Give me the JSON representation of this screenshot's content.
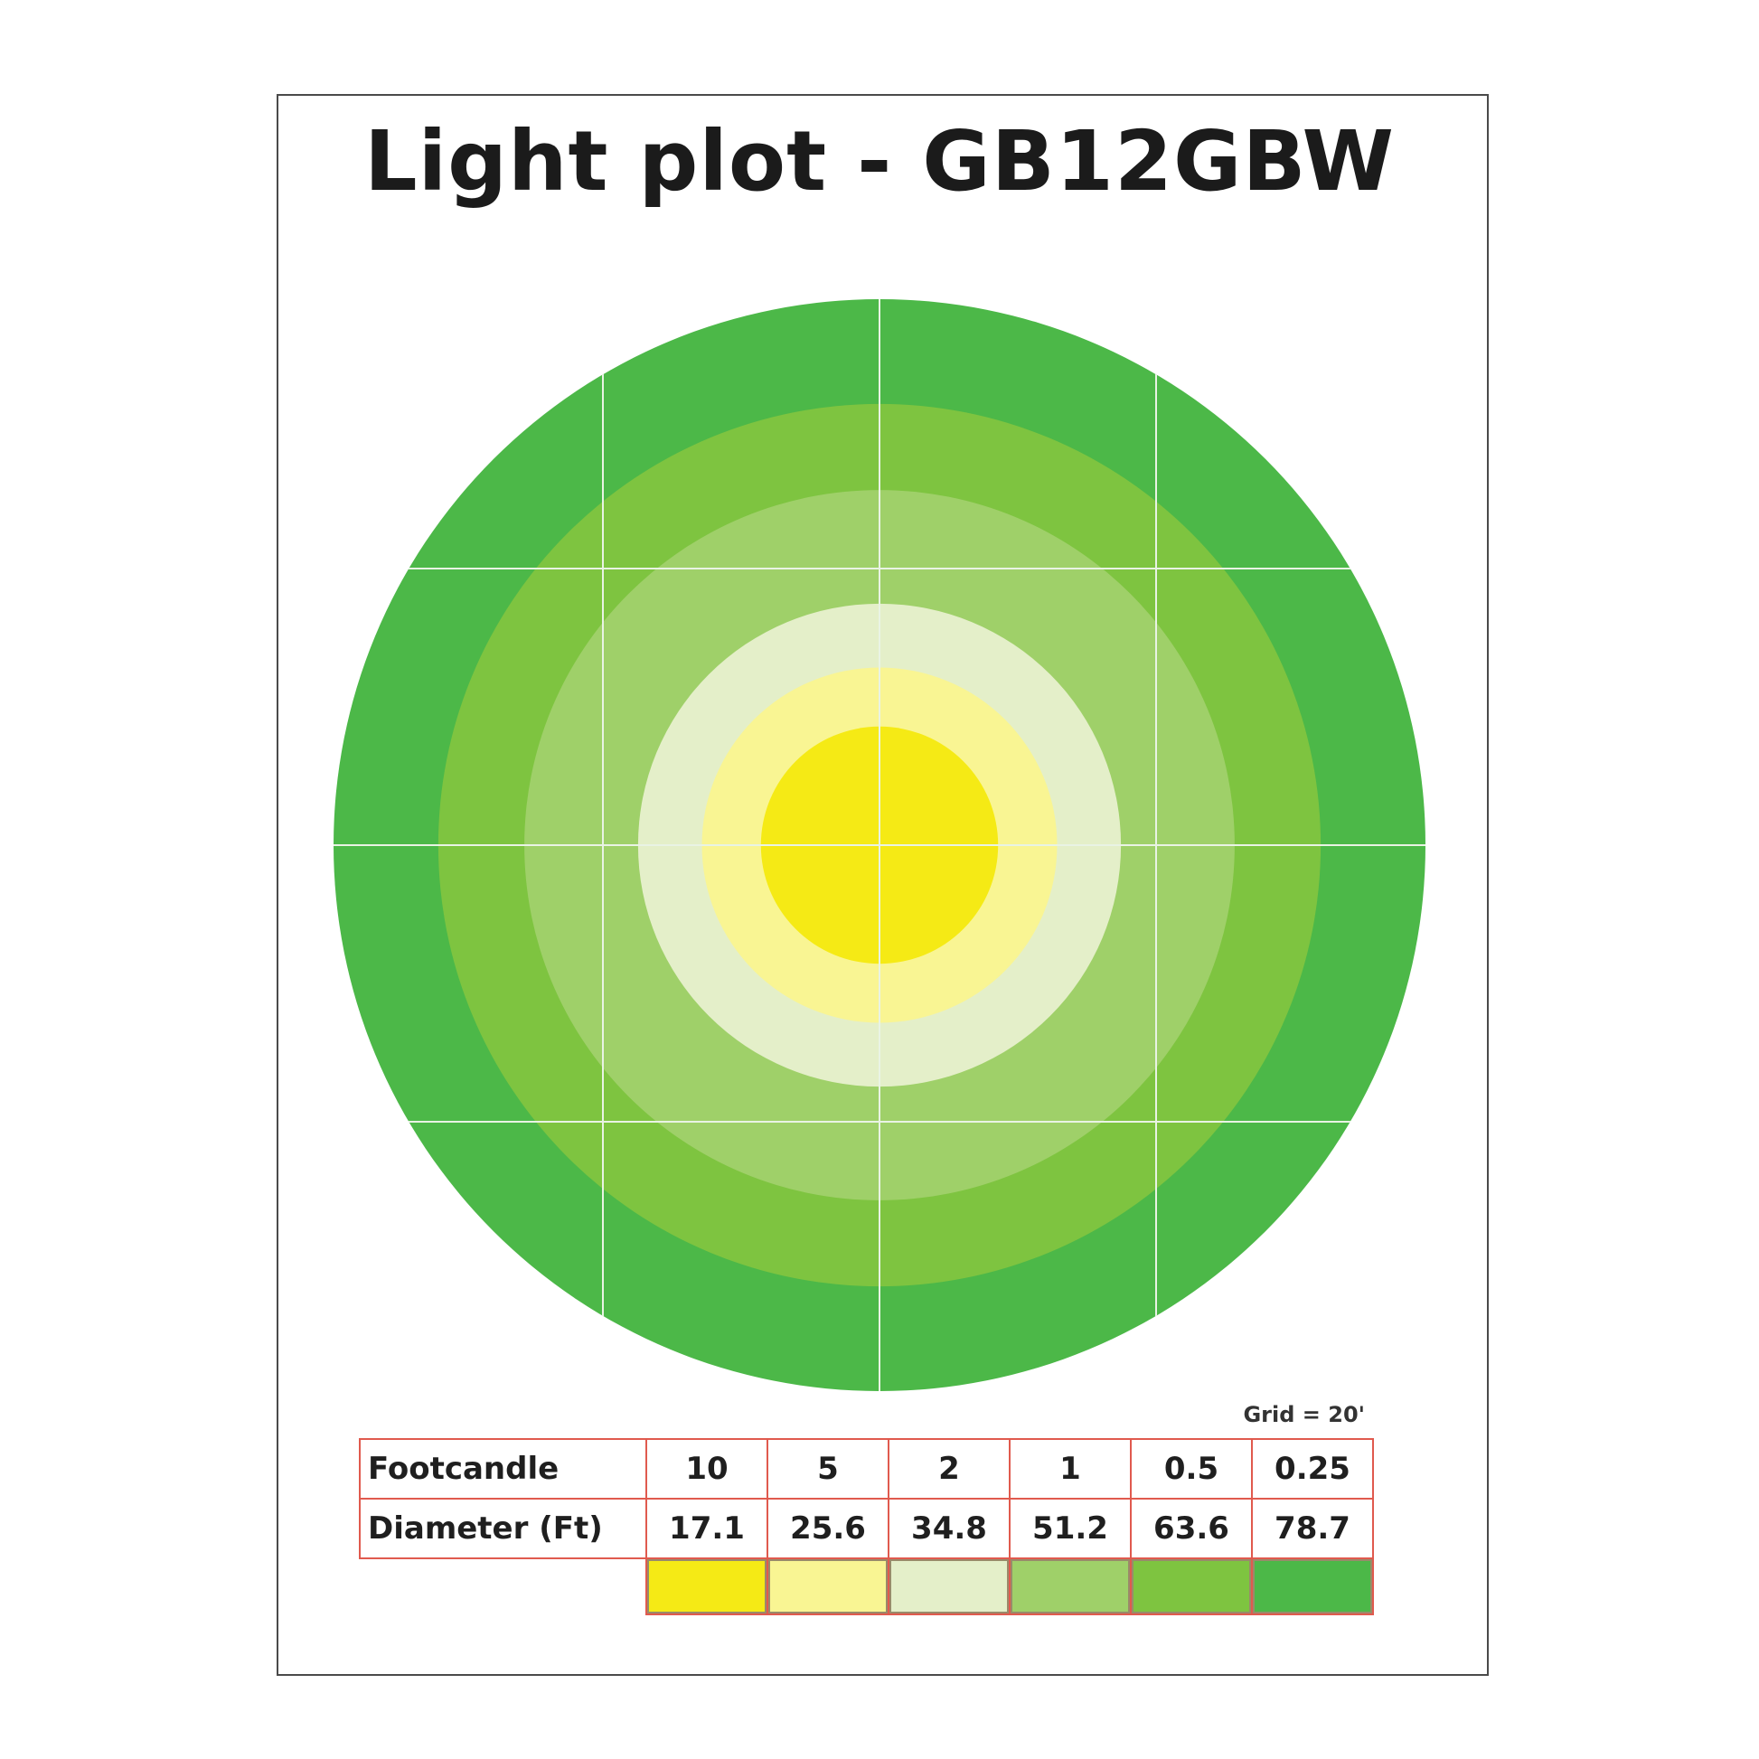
{
  "title": "Light plot - GB12GBW",
  "grid_note": "Grid = 20'",
  "legend": {
    "row1_label": "Footcandle",
    "row2_label": "Diameter (Ft)",
    "footcandle": [
      "10",
      "5",
      "2",
      "1",
      "0.5",
      "0.25"
    ],
    "diameter": [
      "17.1",
      "25.6",
      "34.8",
      "51.2",
      "63.6",
      "78.7"
    ],
    "colors": [
      "#f5ea15",
      "#f9f593",
      "#e4efc9",
      "#9fd069",
      "#7ec440",
      "#4cb848"
    ]
  },
  "rings": [
    {
      "footcandle": "0.25",
      "diameter_ft": 78.7,
      "color": "#4cb848"
    },
    {
      "footcandle": "0.5",
      "diameter_ft": 63.6,
      "color": "#7ec440"
    },
    {
      "footcandle": "1",
      "diameter_ft": 51.2,
      "color": "#9fd069"
    },
    {
      "footcandle": "2",
      "diameter_ft": 34.8,
      "color": "#e4efc9"
    },
    {
      "footcandle": "5",
      "diameter_ft": 25.6,
      "color": "#f9f593"
    },
    {
      "footcandle": "10",
      "diameter_ft": 17.1,
      "color": "#f5ea15"
    }
  ],
  "grid_spacing_ft": 20
}
